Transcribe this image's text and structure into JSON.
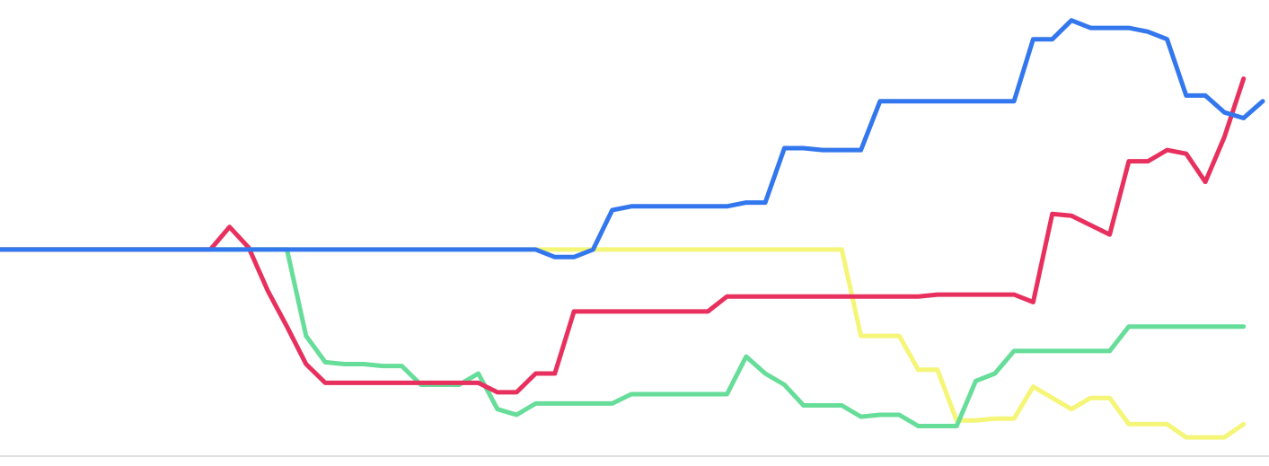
{
  "chart_data": {
    "type": "line",
    "title": "",
    "xlabel": "",
    "ylabel": "",
    "grid": false,
    "legend": "none",
    "xlim": [
      0,
      66
    ],
    "ylim": [
      -11,
      13
    ],
    "baseline_color": "#e0e0e0",
    "series": [
      {
        "color": "#f5f577",
        "values": [
          0,
          0,
          0,
          0,
          0,
          0,
          0,
          0,
          0,
          0,
          0,
          0,
          0,
          0,
          0,
          0,
          0,
          0,
          0,
          0,
          0,
          0,
          0,
          0,
          0,
          0,
          0,
          0,
          0,
          0,
          0,
          0,
          0,
          0,
          0,
          0,
          0,
          0,
          0,
          0,
          0,
          0,
          0,
          0,
          0,
          -4.6,
          -4.6,
          -4.6,
          -6.4,
          -6.4,
          -9.1,
          -9.1,
          -9.0,
          -9.0,
          -7.3,
          -7.9,
          -8.5,
          -7.9,
          -7.9,
          -9.3,
          -9.3,
          -9.3,
          -10.0,
          -10.0,
          -10.0,
          -9.3
        ]
      },
      {
        "color": "#66dd99",
        "values": [
          0,
          0,
          0,
          0,
          0,
          0,
          0,
          0,
          0,
          0,
          0,
          0,
          0,
          0,
          0,
          0,
          -4.6,
          -6.0,
          -6.1,
          -6.1,
          -6.2,
          -6.2,
          -7.2,
          -7.2,
          -7.2,
          -6.6,
          -8.5,
          -8.8,
          -8.2,
          -8.2,
          -8.2,
          -8.2,
          -8.2,
          -7.7,
          -7.7,
          -7.7,
          -7.7,
          -7.7,
          -7.7,
          -5.7,
          -6.6,
          -7.2,
          -8.3,
          -8.3,
          -8.3,
          -8.9,
          -8.8,
          -8.8,
          -9.4,
          -9.4,
          -9.4,
          -7.0,
          -6.6,
          -5.4,
          -5.4,
          -5.4,
          -5.4,
          -5.4,
          -5.4,
          -4.1,
          -4.1,
          -4.1,
          -4.1,
          -4.1,
          -4.1,
          -4.1
        ]
      },
      {
        "color": "#e8305e",
        "values": [
          0,
          0,
          0,
          0,
          0,
          0,
          0,
          0,
          0,
          0,
          0,
          0,
          1.2,
          0.1,
          -2.2,
          -4.1,
          -6.1,
          -7.1,
          -7.1,
          -7.1,
          -7.1,
          -7.1,
          -7.1,
          -7.1,
          -7.1,
          -7.1,
          -7.6,
          -7.6,
          -6.6,
          -6.6,
          -3.3,
          -3.3,
          -3.3,
          -3.3,
          -3.3,
          -3.3,
          -3.3,
          -3.3,
          -2.5,
          -2.5,
          -2.5,
          -2.5,
          -2.5,
          -2.5,
          -2.5,
          -2.5,
          -2.5,
          -2.5,
          -2.5,
          -2.4,
          -2.4,
          -2.4,
          -2.4,
          -2.4,
          -2.8,
          1.9,
          1.8,
          1.3,
          0.8,
          4.7,
          4.7,
          5.3,
          5.1,
          3.6,
          6.0,
          9.1
        ]
      },
      {
        "color": "#3377ee",
        "values": [
          0,
          0,
          0,
          0,
          0,
          0,
          0,
          0,
          0,
          0,
          0,
          0,
          0,
          0,
          0,
          0,
          0,
          0,
          0,
          0,
          0,
          0,
          0,
          0,
          0,
          0,
          0,
          0,
          0,
          -0.4,
          -0.4,
          0,
          2.1,
          2.3,
          2.3,
          2.3,
          2.3,
          2.3,
          2.3,
          2.5,
          2.5,
          5.4,
          5.4,
          5.3,
          5.3,
          5.3,
          7.9,
          7.9,
          7.9,
          7.9,
          7.9,
          7.9,
          7.9,
          7.9,
          11.2,
          11.2,
          12.2,
          11.8,
          11.8,
          11.8,
          11.6,
          11.2,
          8.2,
          8.2,
          7.3,
          7.0,
          7.9
        ]
      }
    ]
  }
}
